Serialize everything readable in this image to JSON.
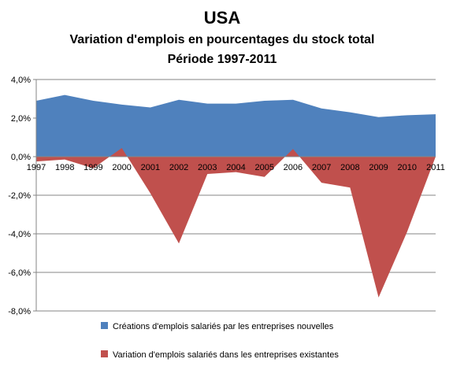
{
  "chart_data": {
    "type": "area",
    "title": "USA",
    "subtitle": "Variation d'emplois en pourcentages du stock total",
    "subtitle2": "Période 1997-2011",
    "categories": [
      "1997",
      "1998",
      "1999",
      "2000",
      "2001",
      "2002",
      "2003",
      "2004",
      "2005",
      "2006",
      "2007",
      "2008",
      "2009",
      "2010",
      "2011"
    ],
    "series": [
      {
        "name": "Créations d'emplois salariés par les entreprises nouvelles",
        "color": "#4f81bd",
        "values": [
          2.9,
          3.2,
          2.9,
          2.7,
          2.55,
          2.95,
          2.75,
          2.75,
          2.9,
          2.95,
          2.5,
          2.3,
          2.05,
          2.15,
          2.2
        ]
      },
      {
        "name": "Variation d'emplois salariés dans les entreprises existantes",
        "color": "#c0504d",
        "values": [
          -0.25,
          -0.15,
          -0.6,
          0.45,
          -1.9,
          -4.5,
          -0.9,
          -0.8,
          -1.05,
          0.4,
          -1.35,
          -1.6,
          -7.3,
          -3.9,
          0.0
        ]
      }
    ],
    "ylim": [
      -8,
      4
    ],
    "yticks": [
      -8,
      -6,
      -4,
      -2,
      0,
      2,
      4
    ],
    "ytick_labels": [
      "-8,0%",
      "-6,0%",
      "-4,0%",
      "-2,0%",
      "0,0%",
      "2,0%",
      "4,0%"
    ],
    "grid": true,
    "legend_position": "bottom"
  }
}
